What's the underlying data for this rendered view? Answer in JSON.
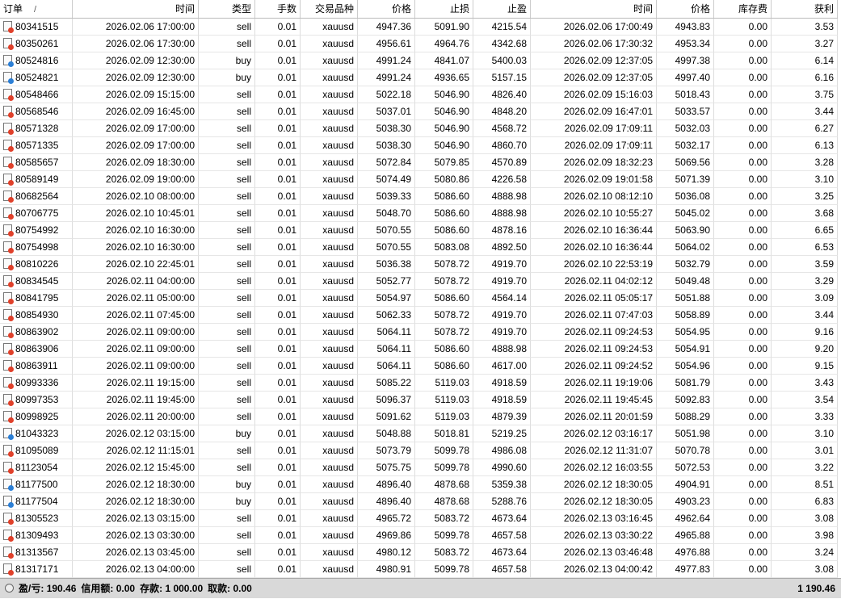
{
  "table": {
    "columns": [
      "订单",
      "时间",
      "类型",
      "手数",
      "交易品种",
      "价格",
      "止损",
      "止盈",
      "时间",
      "价格",
      "库存费",
      "获利"
    ],
    "sort_mark": "/",
    "rows": [
      [
        "80341515",
        "2026.02.06 17:00:00",
        "sell",
        "0.01",
        "xauusd",
        "4947.36",
        "5091.90",
        "4215.54",
        "2026.02.06 17:00:49",
        "4943.83",
        "0.00",
        "3.53"
      ],
      [
        "80350261",
        "2026.02.06 17:30:00",
        "sell",
        "0.01",
        "xauusd",
        "4956.61",
        "4964.76",
        "4342.68",
        "2026.02.06 17:30:32",
        "4953.34",
        "0.00",
        "3.27"
      ],
      [
        "80524816",
        "2026.02.09 12:30:00",
        "buy",
        "0.01",
        "xauusd",
        "4991.24",
        "4841.07",
        "5400.03",
        "2026.02.09 12:37:05",
        "4997.38",
        "0.00",
        "6.14"
      ],
      [
        "80524821",
        "2026.02.09 12:30:00",
        "buy",
        "0.01",
        "xauusd",
        "4991.24",
        "4936.65",
        "5157.15",
        "2026.02.09 12:37:05",
        "4997.40",
        "0.00",
        "6.16"
      ],
      [
        "80548466",
        "2026.02.09 15:15:00",
        "sell",
        "0.01",
        "xauusd",
        "5022.18",
        "5046.90",
        "4826.40",
        "2026.02.09 15:16:03",
        "5018.43",
        "0.00",
        "3.75"
      ],
      [
        "80568546",
        "2026.02.09 16:45:00",
        "sell",
        "0.01",
        "xauusd",
        "5037.01",
        "5046.90",
        "4848.20",
        "2026.02.09 16:47:01",
        "5033.57",
        "0.00",
        "3.44"
      ],
      [
        "80571328",
        "2026.02.09 17:00:00",
        "sell",
        "0.01",
        "xauusd",
        "5038.30",
        "5046.90",
        "4568.72",
        "2026.02.09 17:09:11",
        "5032.03",
        "0.00",
        "6.27"
      ],
      [
        "80571335",
        "2026.02.09 17:00:00",
        "sell",
        "0.01",
        "xauusd",
        "5038.30",
        "5046.90",
        "4860.70",
        "2026.02.09 17:09:11",
        "5032.17",
        "0.00",
        "6.13"
      ],
      [
        "80585657",
        "2026.02.09 18:30:00",
        "sell",
        "0.01",
        "xauusd",
        "5072.84",
        "5079.85",
        "4570.89",
        "2026.02.09 18:32:23",
        "5069.56",
        "0.00",
        "3.28"
      ],
      [
        "80589149",
        "2026.02.09 19:00:00",
        "sell",
        "0.01",
        "xauusd",
        "5074.49",
        "5080.86",
        "4226.58",
        "2026.02.09 19:01:58",
        "5071.39",
        "0.00",
        "3.10"
      ],
      [
        "80682564",
        "2026.02.10 08:00:00",
        "sell",
        "0.01",
        "xauusd",
        "5039.33",
        "5086.60",
        "4888.98",
        "2026.02.10 08:12:10",
        "5036.08",
        "0.00",
        "3.25"
      ],
      [
        "80706775",
        "2026.02.10 10:45:01",
        "sell",
        "0.01",
        "xauusd",
        "5048.70",
        "5086.60",
        "4888.98",
        "2026.02.10 10:55:27",
        "5045.02",
        "0.00",
        "3.68"
      ],
      [
        "80754992",
        "2026.02.10 16:30:00",
        "sell",
        "0.01",
        "xauusd",
        "5070.55",
        "5086.60",
        "4878.16",
        "2026.02.10 16:36:44",
        "5063.90",
        "0.00",
        "6.65"
      ],
      [
        "80754998",
        "2026.02.10 16:30:00",
        "sell",
        "0.01",
        "xauusd",
        "5070.55",
        "5083.08",
        "4892.50",
        "2026.02.10 16:36:44",
        "5064.02",
        "0.00",
        "6.53"
      ],
      [
        "80810226",
        "2026.02.10 22:45:01",
        "sell",
        "0.01",
        "xauusd",
        "5036.38",
        "5078.72",
        "4919.70",
        "2026.02.10 22:53:19",
        "5032.79",
        "0.00",
        "3.59"
      ],
      [
        "80834545",
        "2026.02.11 04:00:00",
        "sell",
        "0.01",
        "xauusd",
        "5052.77",
        "5078.72",
        "4919.70",
        "2026.02.11 04:02:12",
        "5049.48",
        "0.00",
        "3.29"
      ],
      [
        "80841795",
        "2026.02.11 05:00:00",
        "sell",
        "0.01",
        "xauusd",
        "5054.97",
        "5086.60",
        "4564.14",
        "2026.02.11 05:05:17",
        "5051.88",
        "0.00",
        "3.09"
      ],
      [
        "80854930",
        "2026.02.11 07:45:00",
        "sell",
        "0.01",
        "xauusd",
        "5062.33",
        "5078.72",
        "4919.70",
        "2026.02.11 07:47:03",
        "5058.89",
        "0.00",
        "3.44"
      ],
      [
        "80863902",
        "2026.02.11 09:00:00",
        "sell",
        "0.01",
        "xauusd",
        "5064.11",
        "5078.72",
        "4919.70",
        "2026.02.11 09:24:53",
        "5054.95",
        "0.00",
        "9.16"
      ],
      [
        "80863906",
        "2026.02.11 09:00:00",
        "sell",
        "0.01",
        "xauusd",
        "5064.11",
        "5086.60",
        "4888.98",
        "2026.02.11 09:24:53",
        "5054.91",
        "0.00",
        "9.20"
      ],
      [
        "80863911",
        "2026.02.11 09:00:00",
        "sell",
        "0.01",
        "xauusd",
        "5064.11",
        "5086.60",
        "4617.00",
        "2026.02.11 09:24:52",
        "5054.96",
        "0.00",
        "9.15"
      ],
      [
        "80993336",
        "2026.02.11 19:15:00",
        "sell",
        "0.01",
        "xauusd",
        "5085.22",
        "5119.03",
        "4918.59",
        "2026.02.11 19:19:06",
        "5081.79",
        "0.00",
        "3.43"
      ],
      [
        "80997353",
        "2026.02.11 19:45:00",
        "sell",
        "0.01",
        "xauusd",
        "5096.37",
        "5119.03",
        "4918.59",
        "2026.02.11 19:45:45",
        "5092.83",
        "0.00",
        "3.54"
      ],
      [
        "80998925",
        "2026.02.11 20:00:00",
        "sell",
        "0.01",
        "xauusd",
        "5091.62",
        "5119.03",
        "4879.39",
        "2026.02.11 20:01:59",
        "5088.29",
        "0.00",
        "3.33"
      ],
      [
        "81043323",
        "2026.02.12 03:15:00",
        "buy",
        "0.01",
        "xauusd",
        "5048.88",
        "5018.81",
        "5219.25",
        "2026.02.12 03:16:17",
        "5051.98",
        "0.00",
        "3.10"
      ],
      [
        "81095089",
        "2026.02.12 11:15:01",
        "sell",
        "0.01",
        "xauusd",
        "5073.79",
        "5099.78",
        "4986.08",
        "2026.02.12 11:31:07",
        "5070.78",
        "0.00",
        "3.01"
      ],
      [
        "81123054",
        "2026.02.12 15:45:00",
        "sell",
        "0.01",
        "xauusd",
        "5075.75",
        "5099.78",
        "4990.60",
        "2026.02.12 16:03:55",
        "5072.53",
        "0.00",
        "3.22"
      ],
      [
        "81177500",
        "2026.02.12 18:30:00",
        "buy",
        "0.01",
        "xauusd",
        "4896.40",
        "4878.68",
        "5359.38",
        "2026.02.12 18:30:05",
        "4904.91",
        "0.00",
        "8.51"
      ],
      [
        "81177504",
        "2026.02.12 18:30:00",
        "buy",
        "0.01",
        "xauusd",
        "4896.40",
        "4878.68",
        "5288.76",
        "2026.02.12 18:30:05",
        "4903.23",
        "0.00",
        "6.83"
      ],
      [
        "81305523",
        "2026.02.13 03:15:00",
        "sell",
        "0.01",
        "xauusd",
        "4965.72",
        "5083.72",
        "4673.64",
        "2026.02.13 03:16:45",
        "4962.64",
        "0.00",
        "3.08"
      ],
      [
        "81309493",
        "2026.02.13 03:30:00",
        "sell",
        "0.01",
        "xauusd",
        "4969.86",
        "5099.78",
        "4657.58",
        "2026.02.13 03:30:22",
        "4965.88",
        "0.00",
        "3.98"
      ],
      [
        "81313567",
        "2026.02.13 03:45:00",
        "sell",
        "0.01",
        "xauusd",
        "4980.12",
        "5083.72",
        "4673.64",
        "2026.02.13 03:46:48",
        "4976.88",
        "0.00",
        "3.24"
      ],
      [
        "81317171",
        "2026.02.13 04:00:00",
        "sell",
        "0.01",
        "xauusd",
        "4980.91",
        "5099.78",
        "4657.58",
        "2026.02.13 04:00:42",
        "4977.83",
        "0.00",
        "3.08"
      ]
    ]
  },
  "footer": {
    "items": [
      {
        "label": "盈/亏:",
        "value": "190.46"
      },
      {
        "label": "信用额:",
        "value": "0.00"
      },
      {
        "label": "存款:",
        "value": "1 000.00"
      },
      {
        "label": "取款:",
        "value": "0.00"
      }
    ],
    "total": "1 190.46"
  }
}
